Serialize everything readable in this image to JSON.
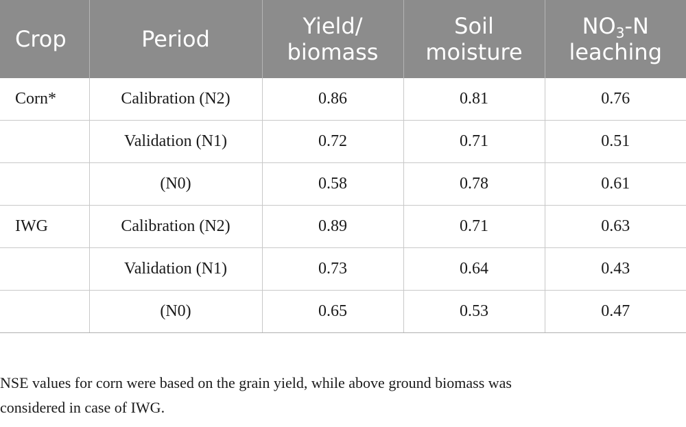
{
  "table": {
    "headers": [
      {
        "line1": "Crop",
        "line2": ""
      },
      {
        "line1": "Period",
        "line2": ""
      },
      {
        "line1": "Yield/",
        "line2": "biomass"
      },
      {
        "line1": "Soil",
        "line2": "moisture"
      },
      {
        "line1_pre": "NO",
        "line1_sub": "3",
        "line1_post": "-N",
        "line2": "leaching"
      }
    ],
    "rows": [
      {
        "crop": "Corn*",
        "period": "Calibration (N2)",
        "yield": "0.86",
        "soil": "0.81",
        "no3": "0.76"
      },
      {
        "crop": "",
        "period": "Validation (N1)",
        "yield": "0.72",
        "soil": "0.71",
        "no3": "0.51"
      },
      {
        "crop": "",
        "period": "(N0)",
        "yield": "0.58",
        "soil": "0.78",
        "no3": "0.61"
      },
      {
        "crop": "IWG",
        "period": "Calibration (N2)",
        "yield": "0.89",
        "soil": "0.71",
        "no3": "0.63"
      },
      {
        "crop": "",
        "period": "Validation (N1)",
        "yield": "0.73",
        "soil": "0.64",
        "no3": "0.43"
      },
      {
        "crop": "",
        "period": "(N0)",
        "yield": "0.65",
        "soil": "0.53",
        "no3": "0.47"
      }
    ]
  },
  "footnote": {
    "line1": "NSE values for corn were based on the grain yield, while above ground biomass was",
    "line2": "considered in case of IWG."
  },
  "colors": {
    "header_bg": "#8c8c8c",
    "header_text": "#ffffff",
    "grid": "#c8c8c8"
  }
}
